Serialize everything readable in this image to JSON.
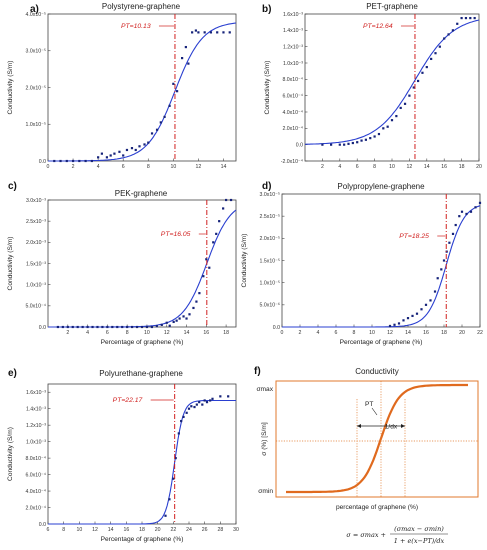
{
  "chart_data": [
    {
      "type": "scatter",
      "panel_label": "a)",
      "title": "Polystyrene-graphene",
      "xlabel": "",
      "ylabel": "Conductivity (S/m)",
      "xlim": [
        0,
        15
      ],
      "ylim": [
        0,
        4e-05
      ],
      "x_ticks": [
        0,
        2,
        4,
        6,
        8,
        10,
        12,
        14
      ],
      "y_ticks": [
        0,
        1e-05,
        2e-05,
        3e-05,
        4e-05
      ],
      "y_tick_labels": [
        "0.0",
        "1.0x10⁻⁵",
        "2.0x10⁻⁵",
        "3.0x10⁻⁵",
        "4.0x10⁻⁵"
      ],
      "pt_label": "PT=10.13",
      "pt": 10.13,
      "fit": {
        "min": 0,
        "max": 3.8e-05,
        "dx": 1.1
      },
      "series": [
        {
          "values": [
            [
              0.5,
              0
            ],
            [
              1,
              0
            ],
            [
              1.5,
              0
            ],
            [
              2,
              0
            ],
            [
              2.5,
              0
            ],
            [
              3,
              0
            ],
            [
              3.5,
              0
            ],
            [
              4,
              1e-06
            ],
            [
              4.3,
              2e-06
            ],
            [
              4.7,
              1e-06
            ],
            [
              5,
              1.5e-06
            ],
            [
              5.3,
              2e-06
            ],
            [
              5.7,
              2.5e-06
            ],
            [
              6,
              1.5e-06
            ],
            [
              6.3,
              3e-06
            ],
            [
              6.7,
              3.5e-06
            ],
            [
              7,
              3e-06
            ],
            [
              7.3,
              4e-06
            ],
            [
              7.7,
              4.5e-06
            ],
            [
              8,
              5e-06
            ],
            [
              8.3,
              7.5e-06
            ],
            [
              8.7,
              8.5e-06
            ],
            [
              9,
              1.05e-05
            ],
            [
              9.3,
              1.2e-05
            ],
            [
              9.7,
              1.5e-05
            ],
            [
              10,
              2.1e-05
            ],
            [
              10.3,
              1.9e-05
            ],
            [
              10.7,
              2.8e-05
            ],
            [
              11,
              3.1e-05
            ],
            [
              11.2,
              2.65e-05
            ],
            [
              11.5,
              3.5e-05
            ],
            [
              11.8,
              3.55e-05
            ],
            [
              12,
              3.5e-05
            ],
            [
              12.5,
              3.5e-05
            ],
            [
              13,
              3.5e-05
            ],
            [
              13.5,
              3.5e-05
            ],
            [
              14,
              3.5e-05
            ],
            [
              14.5,
              3.5e-05
            ]
          ]
        }
      ]
    },
    {
      "type": "scatter",
      "panel_label": "b)",
      "title": "PET-graphene",
      "xlabel": "",
      "ylabel": "Conductivity (S/m)",
      "xlim": [
        0,
        20
      ],
      "ylim": [
        -0.0002,
        0.0016
      ],
      "x_ticks": [
        2,
        4,
        6,
        8,
        10,
        12,
        14,
        16,
        18,
        20
      ],
      "y_ticks": [
        -0.0002,
        0,
        0.0002,
        0.0004,
        0.0006,
        0.0008,
        0.001,
        0.0012,
        0.0014,
        0.0016
      ],
      "y_tick_labels": [
        "-2.0x10⁻⁴",
        "0.0",
        "2.0x10⁻⁴",
        "4.0x10⁻⁴",
        "6.0x10⁻⁴",
        "8.0x10⁻⁴",
        "1.0x10⁻³",
        "1.2x10⁻³",
        "1.4x10⁻³",
        "1.6x10⁻³"
      ],
      "pt_label": "PT=12.64",
      "pt": 12.64,
      "fit": {
        "min": 0,
        "max": 0.00158,
        "dx": 2.2
      },
      "series": [
        {
          "values": [
            [
              2,
              0
            ],
            [
              3,
              0
            ],
            [
              4,
              0
            ],
            [
              4.5,
              0
            ],
            [
              5,
              1e-05
            ],
            [
              5.5,
              2e-05
            ],
            [
              6,
              3e-05
            ],
            [
              6.5,
              5e-05
            ],
            [
              7,
              6e-05
            ],
            [
              7.5,
              8e-05
            ],
            [
              8,
              0.0001
            ],
            [
              8.5,
              0.00013
            ],
            [
              9,
              0.0002
            ],
            [
              9.5,
              0.00022
            ],
            [
              10,
              0.0003
            ],
            [
              10.5,
              0.00035
            ],
            [
              11,
              0.00045
            ],
            [
              11.5,
              0.0005
            ],
            [
              12,
              0.0006
            ],
            [
              12.5,
              0.0007
            ],
            [
              13,
              0.00078
            ],
            [
              13.5,
              0.00088
            ],
            [
              14,
              0.00095
            ],
            [
              14.5,
              0.00105
            ],
            [
              15,
              0.00112
            ],
            [
              15.5,
              0.0012
            ],
            [
              16,
              0.0013
            ],
            [
              16.5,
              0.00135
            ],
            [
              17,
              0.0014
            ],
            [
              17.5,
              0.00148
            ],
            [
              18,
              0.00155
            ],
            [
              18.5,
              0.00155
            ],
            [
              19,
              0.00155
            ],
            [
              19.5,
              0.00155
            ]
          ]
        }
      ]
    },
    {
      "type": "scatter",
      "panel_label": "c)",
      "title": "PEK-graphene",
      "xlabel": "Percentage of graphene (%)",
      "ylabel": "Conductivity (S/m)",
      "xlim": [
        0,
        19
      ],
      "ylim": [
        0,
        0.003
      ],
      "x_ticks": [
        2,
        4,
        6,
        8,
        10,
        12,
        14,
        16,
        18
      ],
      "y_ticks": [
        0,
        0.0005,
        0.001,
        0.0015,
        0.002,
        0.0025,
        0.003
      ],
      "y_tick_labels": [
        "0.0",
        "5.0x10⁻⁴",
        "1.0x10⁻³",
        "1.5x10⁻³",
        "2.0x10⁻³",
        "2.5x10⁻³",
        "3.0x10⁻³"
      ],
      "pt_label": "PT=16.05",
      "pt": 16.05,
      "fit": {
        "min": 0,
        "max": 0.003,
        "dx": 1.2
      },
      "series": [
        {
          "values": [
            [
              1,
              0
            ],
            [
              1.5,
              0
            ],
            [
              2,
              0
            ],
            [
              2.5,
              0
            ],
            [
              3,
              0
            ],
            [
              3.5,
              0
            ],
            [
              4,
              0
            ],
            [
              4.5,
              0
            ],
            [
              5,
              0
            ],
            [
              5.5,
              0
            ],
            [
              6,
              0
            ],
            [
              6.5,
              0
            ],
            [
              7,
              0
            ],
            [
              7.5,
              0
            ],
            [
              8,
              0
            ],
            [
              8.5,
              0
            ],
            [
              9,
              0
            ],
            [
              9.5,
              0
            ],
            [
              10,
              0
            ],
            [
              10.5,
              0
            ],
            [
              11,
              2e-05
            ],
            [
              11.5,
              5e-05
            ],
            [
              12,
              0.0001
            ],
            [
              12.3,
              3e-05
            ],
            [
              12.7,
              0.00012
            ],
            [
              13,
              0.00015
            ],
            [
              13.3,
              0.0002
            ],
            [
              13.7,
              0.00025
            ],
            [
              14,
              0.0002
            ],
            [
              14.3,
              0.0003
            ],
            [
              14.7,
              0.00045
            ],
            [
              15,
              0.0006
            ],
            [
              15.3,
              0.0008
            ],
            [
              15.7,
              0.0012
            ],
            [
              16,
              0.0016
            ],
            [
              16.3,
              0.0014
            ],
            [
              16.7,
              0.002
            ],
            [
              17,
              0.0022
            ],
            [
              17.3,
              0.0025
            ],
            [
              17.7,
              0.0028
            ],
            [
              18,
              0.003
            ],
            [
              18.5,
              0.003
            ]
          ]
        }
      ]
    },
    {
      "type": "scatter",
      "panel_label": "d)",
      "title": "Polypropylene-graphene",
      "xlabel": "Percentage of graphene (%)",
      "ylabel": "Conductivity (S/m)",
      "xlim": [
        0,
        22
      ],
      "ylim": [
        0,
        3e-05
      ],
      "x_ticks": [
        0,
        2,
        4,
        6,
        8,
        10,
        12,
        14,
        16,
        18,
        20,
        22
      ],
      "y_ticks": [
        0,
        5e-06,
        1e-05,
        1.5e-05,
        2e-05,
        2.5e-05,
        3e-05
      ],
      "y_tick_labels": [
        "0.0",
        "5.0x10⁻⁶",
        "1.0x10⁻⁵",
        "1.5x10⁻⁵",
        "2.0x10⁻⁵",
        "2.5x10⁻⁵",
        "3.0x10⁻⁵"
      ],
      "pt_label": "PT=18.25",
      "pt": 18.25,
      "fit": {
        "min": 0,
        "max": 2.8e-05,
        "dx": 1.0
      },
      "series": [
        {
          "values": [
            [
              12,
              2e-07
            ],
            [
              12.5,
              5e-07
            ],
            [
              13,
              8e-07
            ],
            [
              13.5,
              1.5e-06
            ],
            [
              14,
              2e-06
            ],
            [
              14.5,
              2.5e-06
            ],
            [
              15,
              3e-06
            ],
            [
              15.5,
              4e-06
            ],
            [
              16,
              5e-06
            ],
            [
              16.5,
              6e-06
            ],
            [
              17,
              8e-06
            ],
            [
              17.3,
              1.1e-05
            ],
            [
              17.7,
              1.3e-05
            ],
            [
              18,
              1.5e-05
            ],
            [
              18.3,
              1.7e-05
            ],
            [
              18.6,
              1.9e-05
            ],
            [
              19,
              2.1e-05
            ],
            [
              19.3,
              2.3e-05
            ],
            [
              19.7,
              2.5e-05
            ],
            [
              20,
              2.6e-05
            ],
            [
              20.5,
              2.55e-05
            ],
            [
              21,
              2.6e-05
            ],
            [
              21.5,
              2.7e-05
            ],
            [
              22,
              2.8e-05
            ]
          ]
        }
      ]
    },
    {
      "type": "scatter",
      "panel_label": "e)",
      "title": "Polyurethane-graphene",
      "xlabel": "Percentage of graphene (%)",
      "ylabel": "Conductivity (S/m)",
      "xlim": [
        6,
        30
      ],
      "ylim": [
        0,
        0.0017
      ],
      "x_ticks": [
        6,
        8,
        10,
        12,
        14,
        16,
        18,
        20,
        22,
        24,
        26,
        28,
        30
      ],
      "y_ticks": [
        0,
        0.0002,
        0.0004,
        0.0006,
        0.0008,
        0.001,
        0.0012,
        0.0014,
        0.0016
      ],
      "y_tick_labels": [
        "0.0",
        "2.0x10⁻⁴",
        "4.0x10⁻⁴",
        "6.0x10⁻⁴",
        "8.0x10⁻⁴",
        "1.0x10⁻³",
        "1.2x10⁻³",
        "1.4x10⁻³",
        "1.6x10⁻³"
      ],
      "pt_label": "PT=22.17",
      "pt": 22.17,
      "fit": {
        "min": 0,
        "max": 0.0015,
        "dx": 0.55
      },
      "series": [
        {
          "values": [
            [
              21,
              0.0001
            ],
            [
              21.5,
              0.0003
            ],
            [
              22,
              0.00055
            ],
            [
              22.3,
              0.0008
            ],
            [
              22.7,
              0.0011
            ],
            [
              23,
              0.00125
            ],
            [
              23.3,
              0.0013
            ],
            [
              23.7,
              0.00135
            ],
            [
              24,
              0.0014
            ],
            [
              24.3,
              0.00143
            ],
            [
              24.7,
              0.00142
            ],
            [
              25,
              0.00145
            ],
            [
              25.3,
              0.00148
            ],
            [
              25.7,
              0.00145
            ],
            [
              26,
              0.0015
            ],
            [
              26.3,
              0.00148
            ],
            [
              26.7,
              0.0015
            ],
            [
              27,
              0.00152
            ],
            [
              28,
              0.00155
            ],
            [
              29,
              0.00155
            ]
          ]
        }
      ]
    }
  ],
  "schematic": {
    "panel_label": "f)",
    "title": "Conductivity",
    "xlabel": "percentage of graphene  (%)",
    "ylabel": "σ (%) [S/m]",
    "y_max_label": "σmax",
    "y_min_label": "σmin",
    "pt_label": "PT",
    "slope_label": "1/dx",
    "formula_left": "σ = σmax +",
    "formula_num": "(σmax − σmin)",
    "formula_den": "1 + e(x−PT)/dx"
  },
  "colors": {
    "data_points": "#16237a",
    "fit_line": "#2a3fd0",
    "pt_line": "#d0201f",
    "schematic_accent": "#e07a2e"
  }
}
